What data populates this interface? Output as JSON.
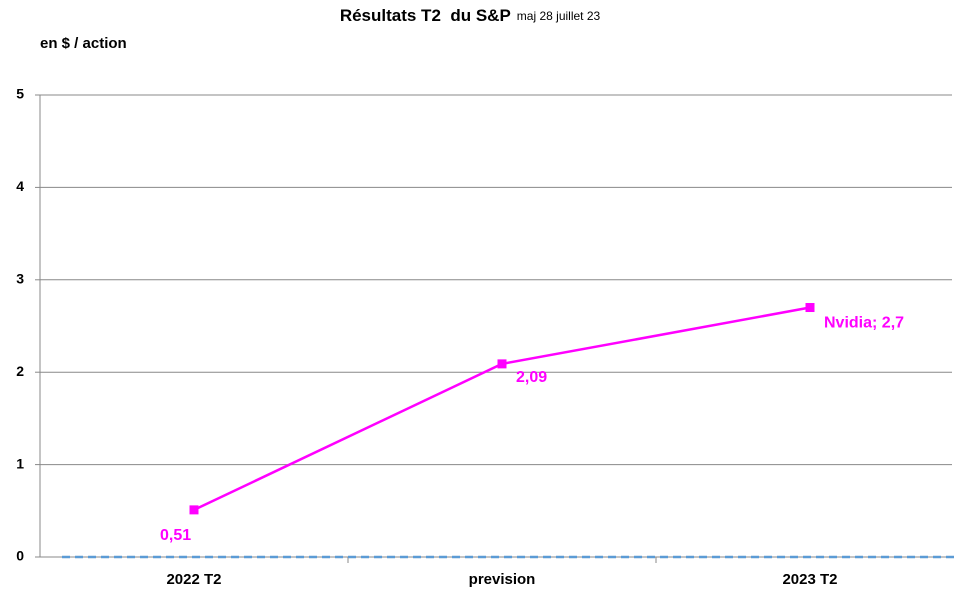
{
  "chart_data": {
    "type": "line",
    "title": "Résultats T2  du S&P",
    "subtitle": "maj 28 juillet 23",
    "y_label": "en $ / action",
    "categories": [
      "2022 T2",
      "prevision",
      "2023 T2"
    ],
    "series": [
      {
        "name": "Nvidia",
        "color": "#ff00ff",
        "values": [
          0.51,
          2.09,
          2.7
        ],
        "value_labels": [
          "0,51",
          "2,09",
          "Nvidia; 2,7"
        ]
      }
    ],
    "reference_line": {
      "value": 0,
      "color": "#5b9bd5"
    },
    "ylim": [
      0,
      5
    ],
    "yticks": [
      0,
      1,
      2,
      3,
      4,
      5
    ],
    "grid": true
  }
}
